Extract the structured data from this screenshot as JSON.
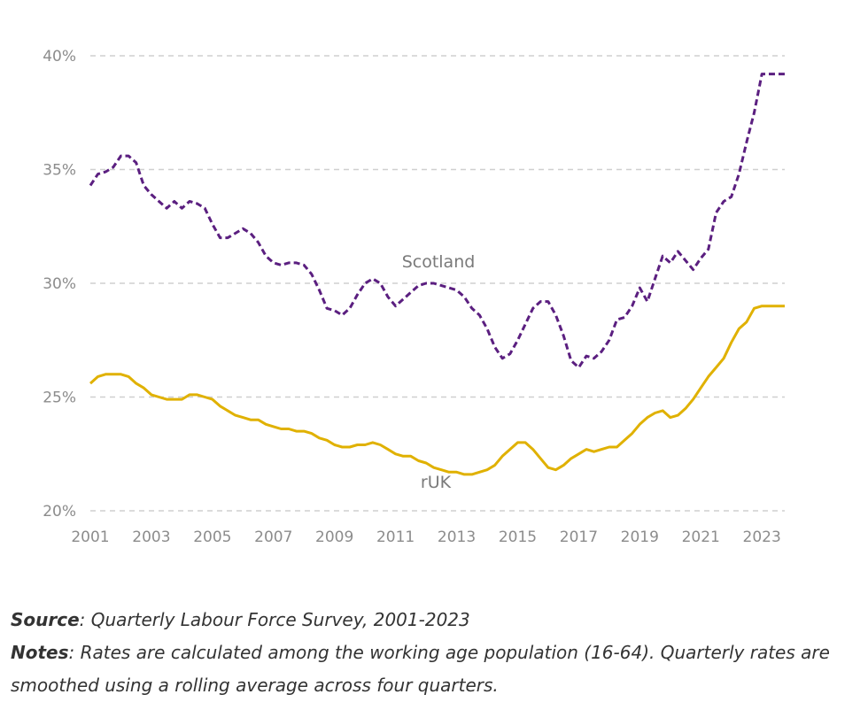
{
  "chart_data": {
    "type": "line",
    "ylim": [
      20,
      40
    ],
    "xlim": [
      2001,
      2023.75
    ],
    "yticks": [
      "20%",
      "25%",
      "30%",
      "35%",
      "40%"
    ],
    "ytick_values": [
      20,
      25,
      30,
      35,
      40
    ],
    "xticks": [
      "2001",
      "2003",
      "2005",
      "2007",
      "2009",
      "2011",
      "2013",
      "2015",
      "2017",
      "2019",
      "2021",
      "2023"
    ],
    "xtick_values": [
      2001,
      2003,
      2005,
      2007,
      2009,
      2011,
      2013,
      2015,
      2017,
      2019,
      2021,
      2023
    ],
    "grid": "horizontal dashed",
    "series": [
      {
        "name": "Scotland",
        "color": "#5b1f80",
        "style": "dashed",
        "x": [
          2001.0,
          2001.25,
          2001.5,
          2001.75,
          2002.0,
          2002.25,
          2002.5,
          2002.75,
          2003.0,
          2003.25,
          2003.5,
          2003.75,
          2004.0,
          2004.25,
          2004.5,
          2004.75,
          2005.0,
          2005.25,
          2005.5,
          2005.75,
          2006.0,
          2006.25,
          2006.5,
          2006.75,
          2007.0,
          2007.25,
          2007.5,
          2007.75,
          2008.0,
          2008.25,
          2008.5,
          2008.75,
          2009.0,
          2009.25,
          2009.5,
          2009.75,
          2010.0,
          2010.25,
          2010.5,
          2010.75,
          2011.0,
          2011.25,
          2011.5,
          2011.75,
          2012.0,
          2012.25,
          2012.5,
          2012.75,
          2013.0,
          2013.25,
          2013.5,
          2013.75,
          2014.0,
          2014.25,
          2014.5,
          2014.75,
          2015.0,
          2015.25,
          2015.5,
          2015.75,
          2016.0,
          2016.25,
          2016.5,
          2016.75,
          2017.0,
          2017.25,
          2017.5,
          2017.75,
          2018.0,
          2018.25,
          2018.5,
          2018.75,
          2019.0,
          2019.25,
          2019.5,
          2019.75,
          2020.0,
          2020.25,
          2020.5,
          2020.75,
          2021.0,
          2021.25,
          2021.5,
          2021.75,
          2022.0,
          2022.25,
          2022.5,
          2022.75,
          2023.0,
          2023.25,
          2023.5,
          2023.75
        ],
        "values": [
          34.3,
          34.8,
          34.9,
          35.1,
          35.6,
          35.6,
          35.3,
          34.3,
          33.9,
          33.6,
          33.3,
          33.6,
          33.3,
          33.6,
          33.5,
          33.3,
          32.6,
          32.0,
          32.0,
          32.2,
          32.4,
          32.2,
          31.8,
          31.2,
          30.9,
          30.8,
          30.9,
          30.9,
          30.8,
          30.4,
          29.7,
          28.9,
          28.8,
          28.6,
          28.9,
          29.5,
          30.0,
          30.2,
          30.0,
          29.4,
          29.0,
          29.3,
          29.6,
          29.9,
          30.0,
          30.0,
          29.9,
          29.8,
          29.7,
          29.4,
          28.9,
          28.6,
          28.0,
          27.2,
          26.7,
          26.9,
          27.5,
          28.2,
          28.9,
          29.2,
          29.2,
          28.6,
          27.7,
          26.6,
          26.3,
          26.8,
          26.7,
          27.0,
          27.5,
          28.4,
          28.5,
          29.0,
          29.8,
          29.2,
          30.2,
          31.2,
          30.9,
          31.4,
          31.0,
          30.6,
          31.1,
          31.5,
          33.1,
          33.6,
          33.8,
          34.8,
          36.2,
          37.5,
          39.2,
          39.2,
          39.2,
          39.2
        ]
      },
      {
        "name": "rUK",
        "color": "#e0b100",
        "style": "solid",
        "x": [
          2001.0,
          2001.25,
          2001.5,
          2001.75,
          2002.0,
          2002.25,
          2002.5,
          2002.75,
          2003.0,
          2003.25,
          2003.5,
          2003.75,
          2004.0,
          2004.25,
          2004.5,
          2004.75,
          2005.0,
          2005.25,
          2005.5,
          2005.75,
          2006.0,
          2006.25,
          2006.5,
          2006.75,
          2007.0,
          2007.25,
          2007.5,
          2007.75,
          2008.0,
          2008.25,
          2008.5,
          2008.75,
          2009.0,
          2009.25,
          2009.5,
          2009.75,
          2010.0,
          2010.25,
          2010.5,
          2010.75,
          2011.0,
          2011.25,
          2011.5,
          2011.75,
          2012.0,
          2012.25,
          2012.5,
          2012.75,
          2013.0,
          2013.25,
          2013.5,
          2013.75,
          2014.0,
          2014.25,
          2014.5,
          2014.75,
          2015.0,
          2015.25,
          2015.5,
          2015.75,
          2016.0,
          2016.25,
          2016.5,
          2016.75,
          2017.0,
          2017.25,
          2017.5,
          2017.75,
          2018.0,
          2018.25,
          2018.5,
          2018.75,
          2019.0,
          2019.25,
          2019.5,
          2019.75,
          2020.0,
          2020.25,
          2020.5,
          2020.75,
          2021.0,
          2021.25,
          2021.5,
          2021.75,
          2022.0,
          2022.25,
          2022.5,
          2022.75,
          2023.0,
          2023.25,
          2023.5,
          2023.75
        ],
        "values": [
          25.6,
          25.9,
          26.0,
          26.0,
          26.0,
          25.9,
          25.6,
          25.4,
          25.1,
          25.0,
          24.9,
          24.9,
          24.9,
          25.1,
          25.1,
          25.0,
          24.9,
          24.6,
          24.4,
          24.2,
          24.1,
          24.0,
          24.0,
          23.8,
          23.7,
          23.6,
          23.6,
          23.5,
          23.5,
          23.4,
          23.2,
          23.1,
          22.9,
          22.8,
          22.8,
          22.9,
          22.9,
          23.0,
          22.9,
          22.7,
          22.5,
          22.4,
          22.4,
          22.2,
          22.1,
          21.9,
          21.8,
          21.7,
          21.7,
          21.6,
          21.6,
          21.7,
          21.8,
          22.0,
          22.4,
          22.7,
          23.0,
          23.0,
          22.7,
          22.3,
          21.9,
          21.8,
          22.0,
          22.3,
          22.5,
          22.7,
          22.6,
          22.7,
          22.8,
          22.8,
          23.1,
          23.4,
          23.8,
          24.1,
          24.3,
          24.4,
          24.1,
          24.2,
          24.5,
          24.9,
          25.4,
          25.9,
          26.3,
          26.7,
          27.4,
          28.0,
          28.3,
          28.9,
          29.0,
          29.0,
          29.0,
          29.0
        ]
      }
    ]
  },
  "source": {
    "label": "Source",
    "text": ": Quarterly Labour Force Survey, 2001-2023"
  },
  "notes": {
    "label": "Notes",
    "text": ": Rates are calculated among the working age population (16-64). Quarterly rates are smoothed using a rolling average across four quarters."
  }
}
